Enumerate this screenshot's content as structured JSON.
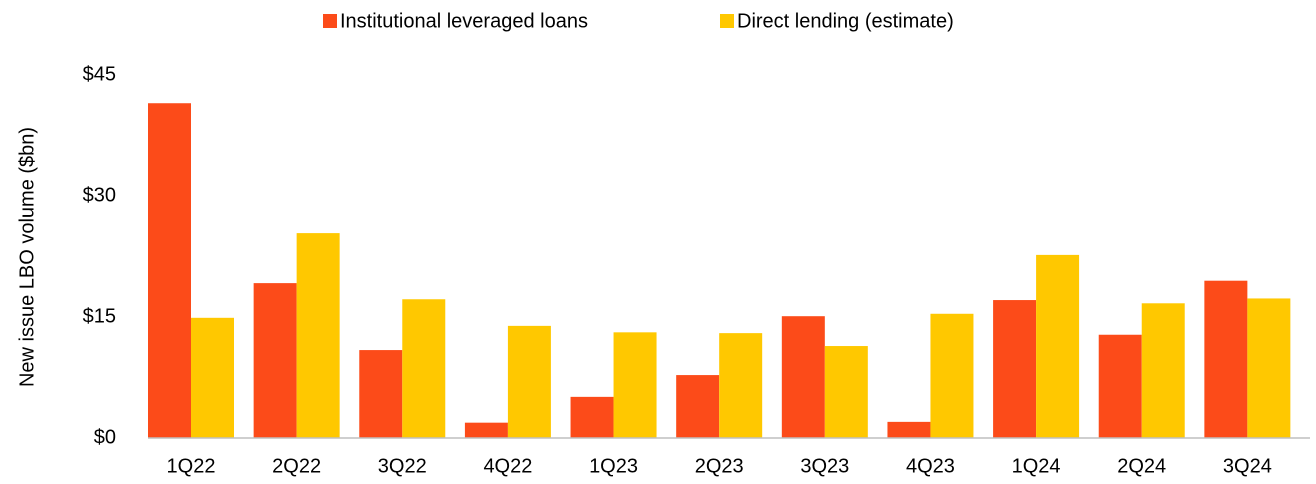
{
  "chart_data": {
    "type": "bar",
    "y_label": "New issue LBO volume ($bn)",
    "categories": [
      "1Q22",
      "2Q22",
      "3Q22",
      "4Q22",
      "1Q23",
      "2Q23",
      "3Q23",
      "4Q23",
      "1Q24",
      "2Q24",
      "3Q24"
    ],
    "series": [
      {
        "name": "Institutional leveraged loans",
        "color": "#fc4b19",
        "values": [
          41.5,
          19.2,
          10.9,
          1.9,
          5.1,
          7.8,
          15.1,
          2.0,
          17.1,
          12.8,
          19.5
        ]
      },
      {
        "name": "Direct lending (estimate)",
        "color": "#ffc800",
        "values": [
          14.9,
          25.4,
          17.2,
          13.9,
          13.1,
          13.0,
          11.4,
          15.4,
          22.7,
          16.7,
          17.3
        ]
      }
    ],
    "ylim": [
      0,
      45
    ],
    "yticks": [
      {
        "value": 0,
        "label": "$0"
      },
      {
        "value": 15,
        "label": "$15"
      },
      {
        "value": 30,
        "label": "$30"
      },
      {
        "value": 45,
        "label": "$45"
      }
    ],
    "grid": false,
    "legend": "top"
  }
}
